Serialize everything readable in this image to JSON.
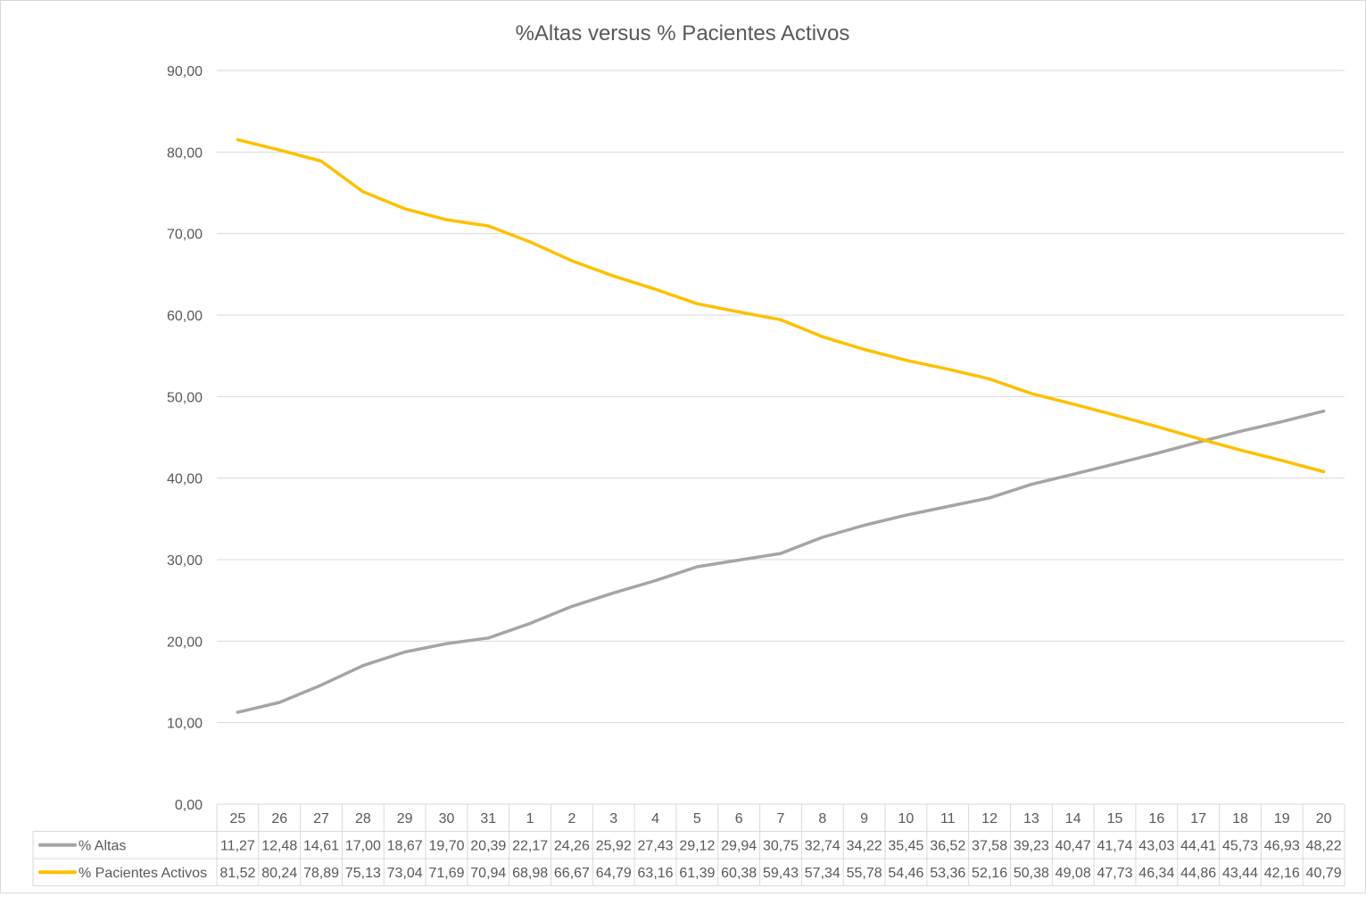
{
  "chart_data": {
    "type": "line",
    "title": "%Altas versus % Pacientes Activos",
    "xlabel": "",
    "ylabel": "",
    "ylim": [
      0,
      90
    ],
    "yticks": [
      "0,00",
      "10,00",
      "20,00",
      "30,00",
      "40,00",
      "50,00",
      "60,00",
      "70,00",
      "80,00",
      "90,00"
    ],
    "grid": true,
    "legend": "data-table",
    "categories": [
      "25",
      "26",
      "27",
      "28",
      "29",
      "30",
      "31",
      "1",
      "2",
      "3",
      "4",
      "5",
      "6",
      "7",
      "8",
      "9",
      "10",
      "11",
      "12",
      "13",
      "14",
      "15",
      "16",
      "17",
      "18",
      "19",
      "20"
    ],
    "series": [
      {
        "name": "% Altas",
        "color": "#a5a5a5",
        "values": [
          11.27,
          12.48,
          14.61,
          17.0,
          18.67,
          19.7,
          20.39,
          22.17,
          24.26,
          25.92,
          27.43,
          29.12,
          29.94,
          30.75,
          32.74,
          34.22,
          35.45,
          36.52,
          37.58,
          39.23,
          40.47,
          41.74,
          43.03,
          44.41,
          45.73,
          46.93,
          48.22
        ],
        "labels": [
          "11,27",
          "12,48",
          "14,61",
          "17,00",
          "18,67",
          "19,70",
          "20,39",
          "22,17",
          "24,26",
          "25,92",
          "27,43",
          "29,12",
          "29,94",
          "30,75",
          "32,74",
          "34,22",
          "35,45",
          "36,52",
          "37,58",
          "39,23",
          "40,47",
          "41,74",
          "43,03",
          "44,41",
          "45,73",
          "46,93",
          "48,22"
        ]
      },
      {
        "name": "% Pacientes Activos",
        "color": "#ffc000",
        "values": [
          81.52,
          80.24,
          78.89,
          75.13,
          73.04,
          71.69,
          70.94,
          68.98,
          66.67,
          64.79,
          63.16,
          61.39,
          60.38,
          59.43,
          57.34,
          55.78,
          54.46,
          53.36,
          52.16,
          50.38,
          49.08,
          47.73,
          46.34,
          44.86,
          43.44,
          42.16,
          40.79
        ],
        "labels": [
          "81,52",
          "80,24",
          "78,89",
          "75,13",
          "73,04",
          "71,69",
          "70,94",
          "68,98",
          "66,67",
          "64,79",
          "63,16",
          "61,39",
          "60,38",
          "59,43",
          "57,34",
          "55,78",
          "54,46",
          "53,36",
          "52,16",
          "50,38",
          "49,08",
          "47,73",
          "46,34",
          "44,86",
          "43,44",
          "42,16",
          "40,79"
        ]
      }
    ]
  }
}
